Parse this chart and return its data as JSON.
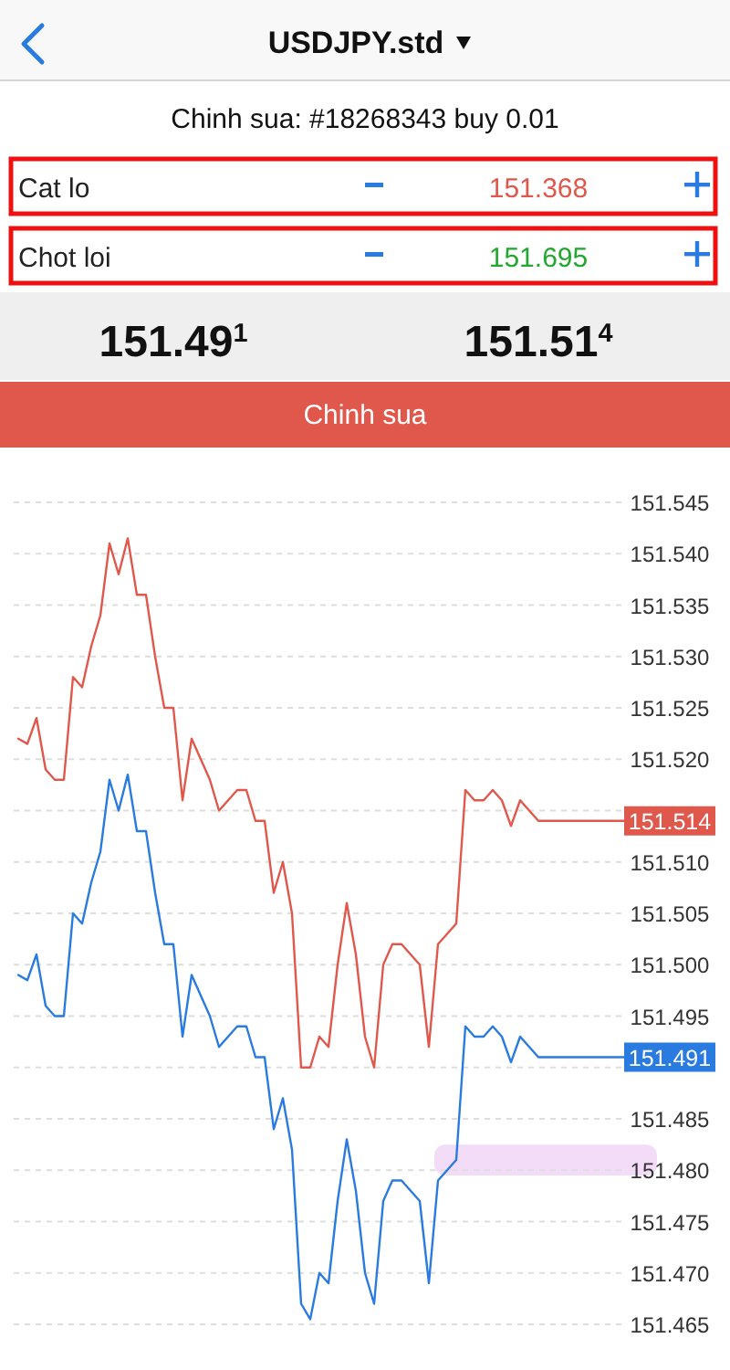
{
  "chart_data": {
    "type": "line",
    "title": "USDJPY.std",
    "subtitle": "Chinh sua: #18268343 buy 0.01",
    "annotations": [
      "Cat lo",
      "151.368",
      "Chot loi",
      "151.695",
      "151.49$^{1}$",
      "151.51$^{4}$",
      "Chinh sua"
    ],
    "categories": [
      null,
      null,
      null,
      null,
      null,
      null,
      null,
      null,
      null,
      null,
      null,
      null,
      null,
      null,
      null,
      null,
      null,
      null,
      null,
      null,
      null,
      null,
      null,
      null,
      null,
      null,
      null,
      null,
      null,
      null,
      null,
      null,
      null,
      null,
      null,
      null,
      null,
      null,
      null,
      null,
      null,
      null,
      null,
      null,
      null,
      null,
      null,
      null,
      null,
      null,
      null,
      null,
      null,
      null,
      null,
      null,
      null,
      null,
      null,
      null,
      null,
      null,
      null,
      null,
      null,
      null,
      null
    ],
    "series": [
      {
        "color": "#e0584c",
        "values": [
          151.522,
          151.5215,
          151.524,
          151.519,
          151.518,
          151.518,
          151.528,
          151.527,
          151.531,
          151.534,
          151.541,
          151.538,
          151.5415,
          151.536,
          151.536,
          151.53,
          151.525,
          151.525,
          151.516,
          151.522,
          151.52,
          151.518,
          151.515,
          151.516,
          151.517,
          151.517,
          151.514,
          151.514,
          151.507,
          151.51,
          151.505,
          151.49,
          151.49,
          151.493,
          151.492,
          151.5,
          151.506,
          151.501,
          151.493,
          151.49,
          151.5,
          151.502,
          151.502,
          151.501,
          151.5,
          151.492,
          151.502,
          151.503,
          151.504,
          151.517,
          151.516,
          151.516,
          151.517,
          151.516,
          151.5135,
          151.516,
          151.515,
          151.514,
          151.514,
          151.514,
          151.514,
          151.514,
          151.514,
          151.514,
          151.514,
          151.514,
          151.514
        ],
        "value_labels": [
          null,
          null,
          null,
          null,
          null,
          null,
          null,
          null,
          null,
          null,
          null,
          null,
          null,
          null,
          null,
          null,
          null,
          null,
          null,
          null,
          null,
          null,
          null,
          null,
          null,
          null,
          null,
          null,
          null,
          null,
          null,
          null,
          null,
          null,
          null,
          null,
          null,
          null,
          null,
          null,
          null,
          null,
          null,
          null,
          null,
          null,
          null,
          null,
          null,
          null,
          null,
          null,
          null,
          null,
          null,
          null,
          null,
          null,
          null,
          null,
          null,
          null,
          null,
          null,
          null,
          null,
          "151.514"
        ]
      },
      {
        "color": "#2a7be0",
        "values": [
          151.499,
          151.4985,
          151.501,
          151.496,
          151.495,
          151.495,
          151.505,
          151.504,
          151.508,
          151.511,
          151.518,
          151.515,
          151.5185,
          151.513,
          151.513,
          151.507,
          151.502,
          151.502,
          151.493,
          151.499,
          151.497,
          151.495,
          151.492,
          151.493,
          151.494,
          151.494,
          151.491,
          151.491,
          151.484,
          151.487,
          151.482,
          151.467,
          151.4655,
          151.47,
          151.469,
          151.477,
          151.483,
          151.478,
          151.47,
          151.467,
          151.477,
          151.479,
          151.479,
          151.478,
          151.477,
          151.469,
          151.479,
          151.48,
          151.481,
          151.494,
          151.493,
          151.493,
          151.494,
          151.493,
          151.4905,
          151.493,
          151.492,
          151.491,
          151.491,
          151.491,
          151.491,
          151.491,
          151.491,
          151.491,
          151.491,
          151.491,
          151.491
        ],
        "value_labels": [
          null,
          null,
          null,
          null,
          null,
          null,
          null,
          null,
          null,
          null,
          null,
          null,
          null,
          null,
          null,
          null,
          null,
          null,
          null,
          null,
          null,
          null,
          null,
          null,
          null,
          null,
          null,
          null,
          null,
          null,
          null,
          null,
          null,
          null,
          null,
          null,
          null,
          null,
          null,
          null,
          null,
          null,
          null,
          null,
          null,
          null,
          null,
          null,
          null,
          null,
          null,
          null,
          null,
          null,
          null,
          null,
          null,
          null,
          null,
          null,
          null,
          null,
          null,
          null,
          null,
          null,
          "151.491"
        ]
      }
    ],
    "ylim": [
      151.465,
      151.545
    ],
    "yticks": [
      {
        "value": 151.465,
        "label": "151.465"
      },
      {
        "value": 151.47,
        "label": "151.470"
      },
      {
        "value": 151.475,
        "label": "151.475"
      },
      {
        "value": 151.48,
        "label": "151.480"
      },
      {
        "value": 151.485,
        "label": "151.485"
      },
      {
        "value": 151.49,
        "label": null
      },
      {
        "value": 151.495,
        "label": "151.495"
      },
      {
        "value": 151.5,
        "label": "151.500"
      },
      {
        "value": 151.505,
        "label": "151.505"
      },
      {
        "value": 151.51,
        "label": "151.510"
      },
      {
        "value": 151.515,
        "label": null
      },
      {
        "value": 151.52,
        "label": "151.520"
      },
      {
        "value": 151.525,
        "label": "151.525"
      },
      {
        "value": 151.53,
        "label": "151.530"
      },
      {
        "value": 151.535,
        "label": "151.535"
      },
      {
        "value": 151.54,
        "label": "151.540"
      },
      {
        "value": 151.545,
        "label": "151.545"
      }
    ],
    "bands": [
      {
        "axis": "y",
        "from": 151.4795,
        "to": 151.4825,
        "color": "#f2dcf8"
      }
    ],
    "grid": "y",
    "marker": "none",
    "line_style": "solid"
  }
}
